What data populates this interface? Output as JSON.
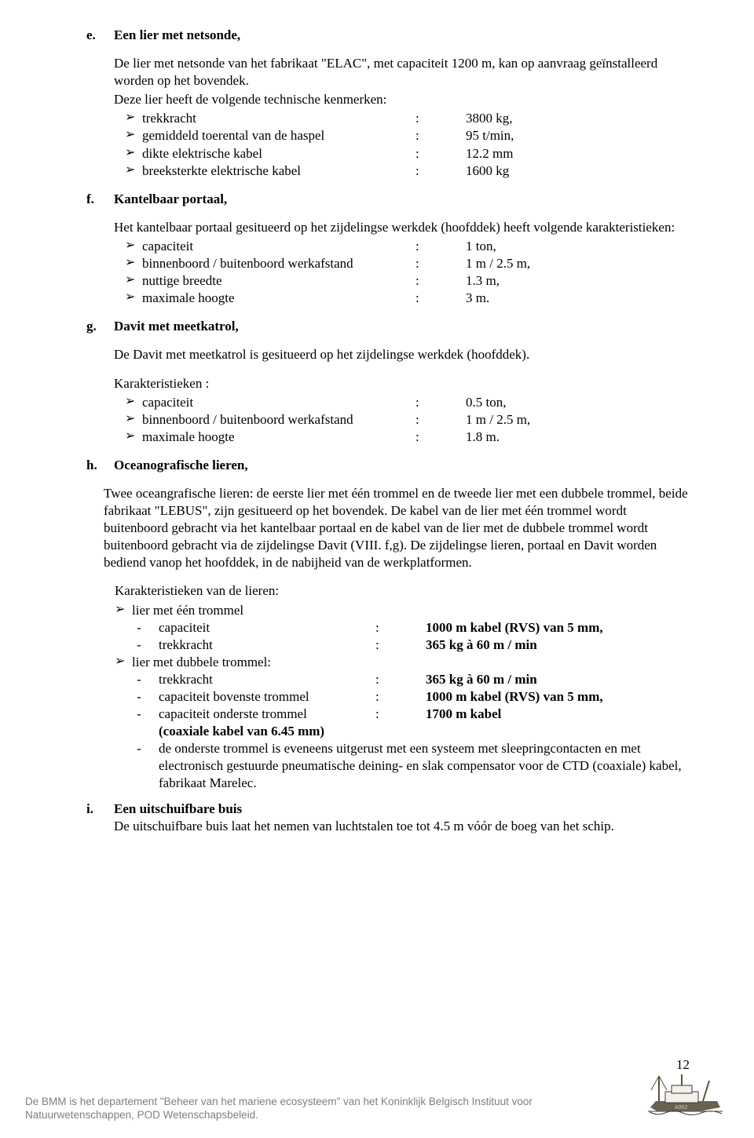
{
  "section_e": {
    "letter": "e.",
    "title": "Een lier met netsonde,",
    "intro1": "De lier met netsonde van het fabrikaat  \"ELAC\", met capaciteit 1200 m, kan op aanvraag geïnstalleerd worden op het bovendek.",
    "intro2": "Deze lier heeft de volgende technische kenmerken:",
    "items": [
      {
        "label": "trekkracht",
        "value": "3800 kg,",
        "label_w": 348
      },
      {
        "label": "gemiddeld toerental van de haspel",
        "value": "95 t/min,",
        "label_w": 348
      },
      {
        "label": "dikte elektrische kabel",
        "value": "12.2 mm",
        "label_w": 348
      },
      {
        "label": "breeksterkte elektrische kabel",
        "value": "1600 kg",
        "label_w": 348
      }
    ]
  },
  "section_f": {
    "letter": "f.",
    "title": "Kantelbaar portaal,",
    "intro": "Het kantelbaar portaal gesitueerd op het zijdelingse werkdek  (hoofddek) heeft volgende karakteristieken:",
    "items": [
      {
        "label": "capaciteit",
        "value": "1  ton,",
        "label_w": 348
      },
      {
        "label": "binnenboord  / buitenboord werkafstand",
        "value": "1 m / 2.5 m,",
        "label_w": 348
      },
      {
        "label": "nuttige breedte",
        "value": "1.3 m,",
        "label_w": 348
      },
      {
        "label": "maximale hoogte",
        "value": "3 m.",
        "label_w": 348
      }
    ]
  },
  "section_g": {
    "letter": "g.",
    "title": "Davit met meetkatrol,",
    "intro": "De Davit met meetkatrol is gesitueerd op het zijdelingse werkdek (hoofddek).",
    "subhead": "Karakteristieken  :",
    "items": [
      {
        "label": "capaciteit",
        "value": "0.5  ton,",
        "label_w": 348
      },
      {
        "label": "binnenboord  / buitenboord werkafstand",
        "value": "1 m / 2.5 m,",
        "label_w": 348
      },
      {
        "label": "maximale hoogte",
        "value": "1.8    m.",
        "label_w": 348
      }
    ]
  },
  "section_h": {
    "letter": "h.",
    "title": "Oceanografische lieren,",
    "para": "Twee oceangrafische lieren: de eerste lier met één trommel en de tweede lier met een dubbele trommel, beide fabrikaat    \"LEBUS\", zijn gesitueerd op het bovendek. De kabel van de lier met één trommel wordt buitenboord gebracht via het kantelbaar portaal en de kabel van de lier met de dubbele trommel wordt buitenboord gebracht via  de zijdelingse Davit  (VIII.  f,g).  De zijdelingse lieren, portaal en Davit worden bediend vanop het hoofddek, in de nabijheid van de werkplatformen.",
    "subhead": "Karakteristieken van de lieren:",
    "group1_label": "lier met één trommel",
    "group1_items": [
      {
        "label": "capaciteit",
        "value": "1000 m kabel (RVS) van 5 mm,",
        "label_w": 276
      },
      {
        "label": "trekkracht",
        "value": "365 kg  à  60  m / min",
        "label_w": 276
      }
    ],
    "group2_label": "lier met dubbele trommel:",
    "group2_items": [
      {
        "label": "trekkracht",
        "value": "365 kg  à  60  m / min",
        "label_w": 276
      },
      {
        "label": "capaciteit bovenste trommel",
        "value": "1000 m kabel (RVS) van 5 mm,",
        "label_w": 276
      },
      {
        "label": "capaciteit onderste trommel",
        "value": "1700 m kabel",
        "label_w": 276
      }
    ],
    "coax_line": "(coaxiale kabel van 6.45 mm)",
    "final_bullet": "de onderste trommel is eveneens uitgerust met een systeem met sleepringcontacten en met electronisch gestuurde pneumatische deining- en slak compensator voor de CTD (coaxiale) kabel, fabrikaat Marelec."
  },
  "section_i": {
    "letter": "i.",
    "title": "Een uitschuifbare buis",
    "text": "De uitschuifbare buis laat het nemen van luchtstalen toe tot  4.5  m vóór de boeg van het schip."
  },
  "page_number": "12",
  "footer_text": "De BMM is het departement \"Beheer van het mariene ecosysteem\" van het Koninklijk Belgisch Instituut voor Natuurwetenschappen, POD Wetenschapsbeleid.",
  "ship_svg": {
    "hull_color": "#696052",
    "mast_color": "#58513f",
    "background": "#ffffff"
  }
}
